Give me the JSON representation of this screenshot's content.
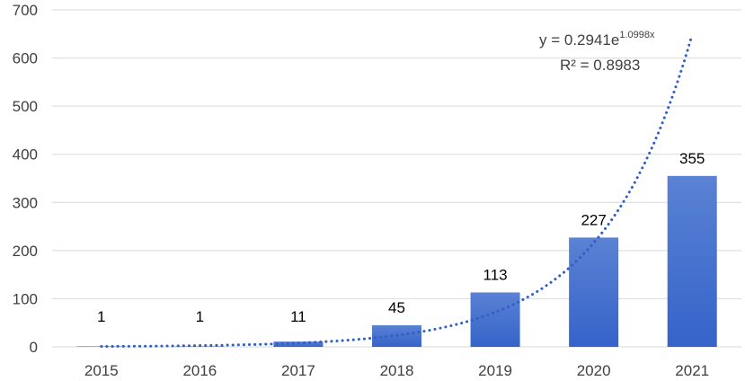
{
  "chart_data": {
    "type": "bar",
    "categories": [
      "2015",
      "2016",
      "2017",
      "2018",
      "2019",
      "2020",
      "2021"
    ],
    "values": [
      1,
      1,
      11,
      45,
      113,
      227,
      355
    ],
    "data_labels": [
      "1",
      "1",
      "11",
      "45",
      "113",
      "227",
      "355"
    ],
    "y_ticks": [
      "0",
      "100",
      "200",
      "300",
      "400",
      "500",
      "600",
      "700"
    ],
    "ylim": [
      0,
      700
    ],
    "grid": true,
    "legend": "none",
    "colors": {
      "bar_top": "#5a82d4",
      "bar_bottom": "#3563c9",
      "trend": "#2f5fc4",
      "grid": "#d9d9d9"
    },
    "trendline": {
      "type": "exponential",
      "a": 0.2941,
      "b": 1.0998,
      "equation_prefix": "y = 0.2941e",
      "equation_exponent": "1.0998x",
      "r_squared": "R² = 0.8983"
    }
  }
}
